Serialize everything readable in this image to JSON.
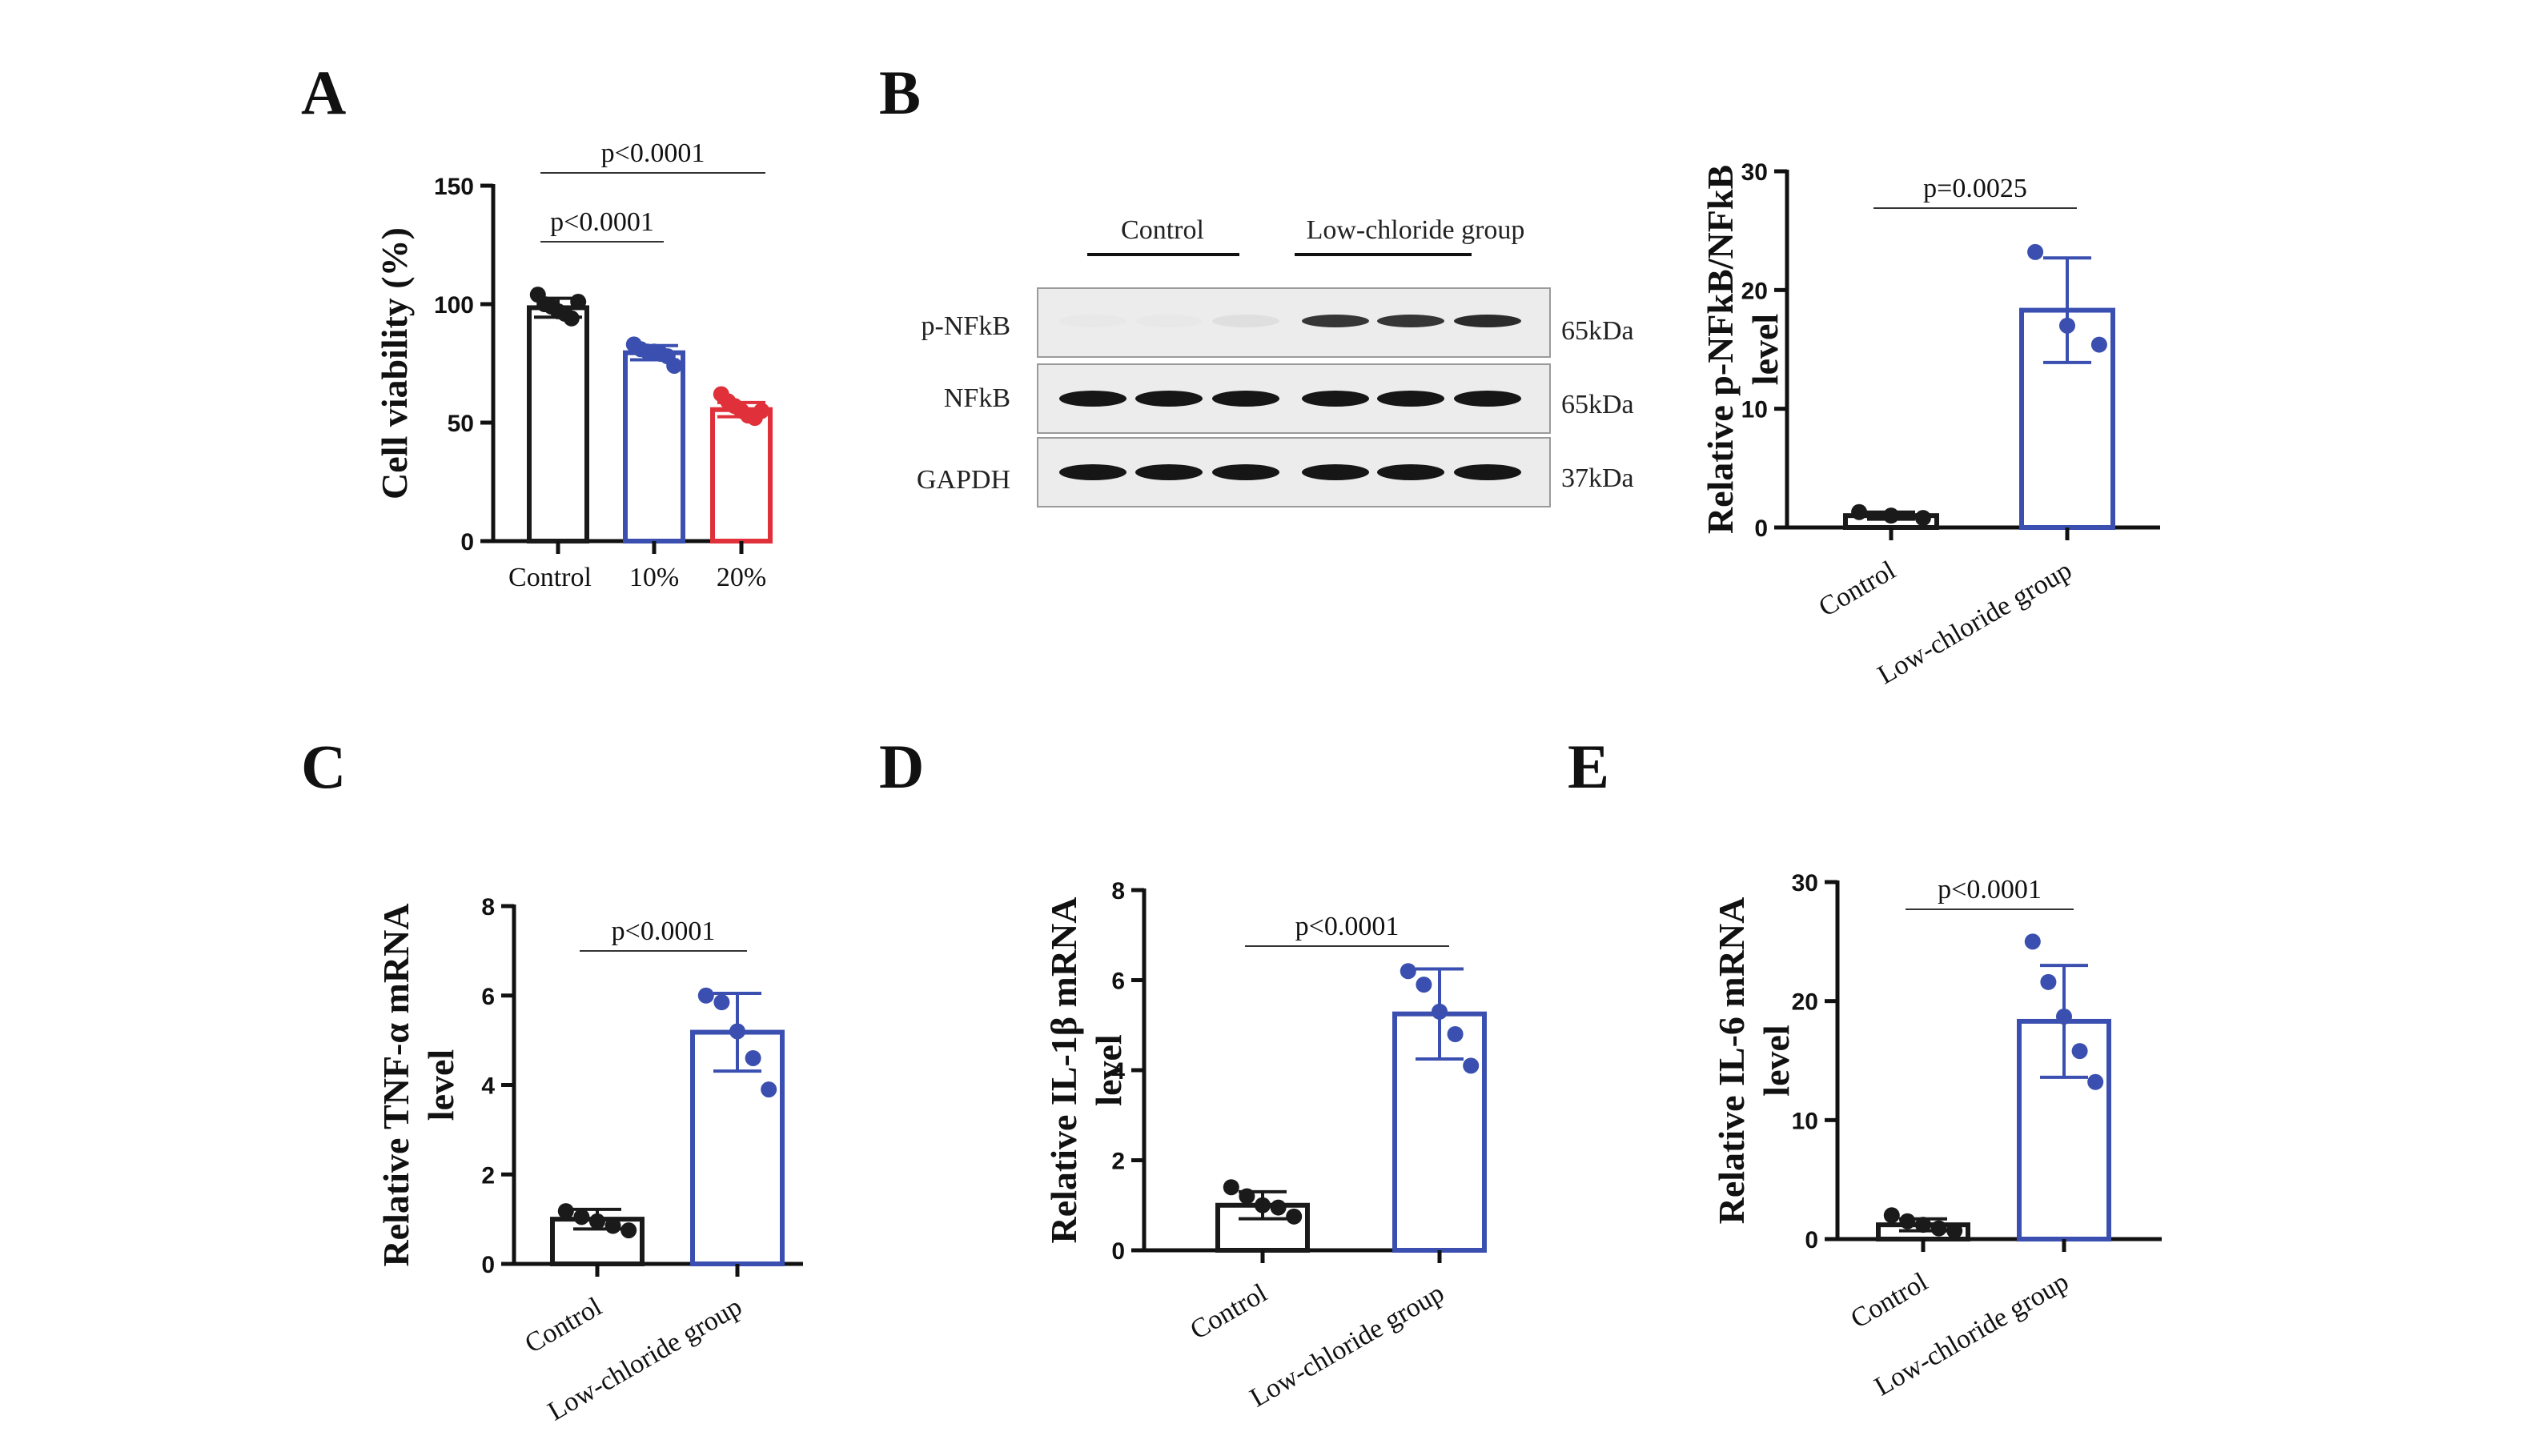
{
  "panels": {
    "A": "A",
    "B": "B",
    "C": "C",
    "D": "D",
    "E": "E"
  },
  "blot": {
    "groups": [
      "Control",
      "Low-chloride group"
    ],
    "rows": [
      {
        "label": "p-NFkB",
        "size": "65kDa",
        "intensity": [
          0.02,
          0.02,
          0.06,
          0.85,
          0.85,
          0.9
        ]
      },
      {
        "label": "NFkB",
        "size": "65kDa",
        "intensity": [
          1,
          1,
          1,
          1,
          1,
          1
        ]
      },
      {
        "label": "GAPDH",
        "size": "37kDa",
        "intensity": [
          1,
          1,
          1,
          1,
          1,
          1
        ]
      }
    ]
  },
  "colors": {
    "control": "#1a1a1a",
    "group10": "#3a4fb0",
    "group20": "#e0313a",
    "lowcl": "#3a4fb0"
  },
  "chart_data": [
    {
      "id": "A",
      "type": "bar",
      "categories": [
        "Control",
        "10%",
        "20%"
      ],
      "values": [
        98.5,
        79.5,
        55.5
      ],
      "errors": [
        4,
        3,
        3
      ],
      "points": [
        [
          104,
          100,
          99,
          97,
          96,
          94,
          101
        ],
        [
          83,
          81,
          80,
          80,
          79,
          78,
          74
        ],
        [
          62,
          59,
          57,
          55,
          53,
          52,
          55
        ]
      ],
      "colors": [
        "#1a1a1a",
        "#3a4fb0",
        "#e0313a"
      ],
      "ylabel": "Cell viability (%)",
      "ylim": [
        0,
        150
      ],
      "yticks": [
        0,
        50,
        100,
        150
      ],
      "comparisons": [
        {
          "from": 0,
          "to": 1,
          "label": "p<0.0001",
          "level": 0
        },
        {
          "from": 0,
          "to": 2,
          "label": "p<0.0001",
          "level": 1
        }
      ]
    },
    {
      "id": "B",
      "type": "bar",
      "categories": [
        "Control",
        "Low-chloride group"
      ],
      "values": [
        1,
        18.3
      ],
      "errors": [
        0.3,
        4.4
      ],
      "points": [
        [
          1.3,
          1.0,
          0.8
        ],
        [
          23.2,
          17.0,
          15.4
        ]
      ],
      "colors": [
        "#1a1a1a",
        "#3a4fb0"
      ],
      "ylabel": [
        "Relative p-NFkB/NFkB",
        "level"
      ],
      "ylim": [
        0,
        30
      ],
      "yticks": [
        0,
        10,
        20,
        30
      ],
      "comparisons": [
        {
          "from": 0,
          "to": 1,
          "label": "p=0.0025",
          "level": 0
        }
      ]
    },
    {
      "id": "C",
      "type": "bar",
      "categories": [
        "Control",
        "Low-chloride group"
      ],
      "values": [
        1.0,
        5.18
      ],
      "errors": [
        0.22,
        0.87
      ],
      "points": [
        [
          1.18,
          1.05,
          0.95,
          0.85,
          0.75
        ],
        [
          6.0,
          5.85,
          5.2,
          4.6,
          3.9
        ]
      ],
      "colors": [
        "#1a1a1a",
        "#3a4fb0"
      ],
      "ylabel": [
        "Relative TNF-α mRNA",
        "level"
      ],
      "ylim": [
        0,
        8
      ],
      "yticks": [
        0,
        2,
        4,
        6,
        8
      ],
      "comparisons": [
        {
          "from": 0,
          "to": 1,
          "label": "p<0.0001",
          "level": 0
        }
      ]
    },
    {
      "id": "D",
      "type": "bar",
      "categories": [
        "Control",
        "Low-chloride group"
      ],
      "values": [
        1.0,
        5.25
      ],
      "errors": [
        0.3,
        1.0
      ],
      "points": [
        [
          1.4,
          1.2,
          1.0,
          0.95,
          0.75
        ],
        [
          6.2,
          5.9,
          5.3,
          4.8,
          4.1
        ]
      ],
      "colors": [
        "#1a1a1a",
        "#3a4fb0"
      ],
      "ylabel": [
        "Relative IL-1β mRNA",
        "level"
      ],
      "ylim": [
        0,
        8
      ],
      "yticks": [
        0,
        2,
        4,
        6,
        8
      ],
      "comparisons": [
        {
          "from": 0,
          "to": 1,
          "label": "p<0.0001",
          "level": 0
        }
      ]
    },
    {
      "id": "E",
      "type": "bar",
      "categories": [
        "Control",
        "Low-chloride group"
      ],
      "values": [
        1.2,
        18.3
      ],
      "errors": [
        0.5,
        4.7
      ],
      "points": [
        [
          2.0,
          1.5,
          1.2,
          0.9,
          0.7
        ],
        [
          25.0,
          21.6,
          18.7,
          15.8,
          13.2
        ]
      ],
      "colors": [
        "#1a1a1a",
        "#3a4fb0"
      ],
      "ylabel": [
        "Relative IL-6 mRNA",
        "level"
      ],
      "ylim": [
        0,
        30
      ],
      "yticks": [
        0,
        10,
        20,
        30
      ],
      "comparisons": [
        {
          "from": 0,
          "to": 1,
          "label": "p<0.0001",
          "level": 0
        }
      ]
    }
  ]
}
